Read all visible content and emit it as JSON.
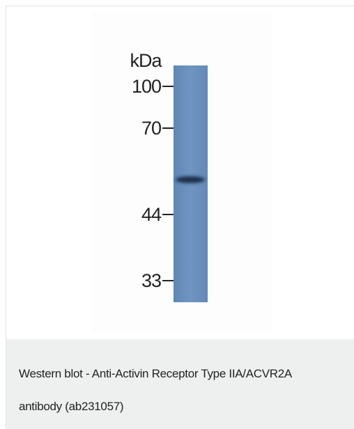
{
  "blot": {
    "unit": "kDa",
    "markers": [
      "100",
      "70",
      "44",
      "33"
    ]
  },
  "caption": "Western blot - Anti-Activin Receptor Type IIA/ACVR2A antibody (ab231057)"
}
